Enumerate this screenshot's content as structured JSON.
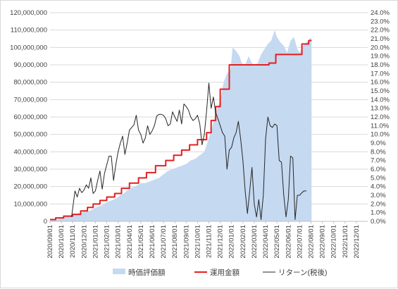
{
  "chart_data": {
    "type": "line",
    "title": "",
    "xlabel": "",
    "ylabel": "",
    "y_left_lim": [
      0,
      120000000
    ],
    "y_left_ticks": [
      "0",
      "10,000,000",
      "20,000,000",
      "30,000,000",
      "40,000,000",
      "50,000,000",
      "60,000,000",
      "70,000,000",
      "80,000,000",
      "90,000,000",
      "100,000,000",
      "110,000,000",
      "120,000,000"
    ],
    "y_right_lim": [
      0,
      24
    ],
    "y_right_ticks": [
      "0.0%",
      "1.0%",
      "2.0%",
      "3.0%",
      "4.0%",
      "5.0%",
      "6.0%",
      "7.0%",
      "8.0%",
      "9.0%",
      "10.0%",
      "11.0%",
      "12.0%",
      "13.0%",
      "14.0%",
      "15.0%",
      "16.0%",
      "17.0%",
      "18.0%",
      "19.0%",
      "20.0%",
      "21.0%",
      "22.0%",
      "23.0%",
      "24.0%"
    ],
    "x_ticks": [
      "2020/09/01",
      "2020/10/01",
      "2020/11/01",
      "2020/12/01",
      "2021/01/01",
      "2021/02/01",
      "2021/03/01",
      "2021/04/01",
      "2021/05/01",
      "2021/06/01",
      "2021/07/01",
      "2021/08/01",
      "2021/09/01",
      "2021/10/01",
      "2021/11/01",
      "2021/12/01",
      "2022/01/01",
      "2022/02/01",
      "2022/03/01",
      "2022/04/01",
      "2022/05/01",
      "2022/06/01",
      "2022/07/01",
      "2022/08/01",
      "2022/09/01",
      "2022/10/01",
      "2022/11/01",
      "2022/12/01"
    ],
    "x_range": [
      0,
      28
    ],
    "grid": true,
    "legend_position": "bottom",
    "series": [
      {
        "name": "時価評価額",
        "kind": "area",
        "axis": "left",
        "color": "#c5d9f1",
        "points": [
          [
            0.0,
            1000000
          ],
          [
            0.5,
            1000000
          ],
          [
            0.8,
            1500000
          ],
          [
            1.2,
            2500000
          ],
          [
            1.6,
            3000000
          ],
          [
            2.0,
            4000000
          ],
          [
            2.5,
            4500000
          ],
          [
            3.0,
            5500000
          ],
          [
            3.5,
            6000000
          ],
          [
            4.0,
            8000000
          ],
          [
            4.5,
            9000000
          ],
          [
            5.0,
            11000000
          ],
          [
            5.4,
            12000000
          ],
          [
            5.8,
            13000000
          ],
          [
            6.2,
            15000000
          ],
          [
            6.6,
            16500000
          ],
          [
            7.0,
            19000000
          ],
          [
            7.5,
            20000000
          ],
          [
            8.0,
            22000000
          ],
          [
            8.4,
            22000000
          ],
          [
            8.8,
            23000000
          ],
          [
            9.2,
            24000000
          ],
          [
            9.6,
            25000000
          ],
          [
            10.0,
            27000000
          ],
          [
            10.4,
            29000000
          ],
          [
            10.8,
            30000000
          ],
          [
            11.2,
            31000000
          ],
          [
            11.6,
            32000000
          ],
          [
            12.0,
            33000000
          ],
          [
            12.4,
            35000000
          ],
          [
            12.8,
            36000000
          ],
          [
            13.2,
            38000000
          ],
          [
            13.6,
            40000000
          ],
          [
            14.0,
            48000000
          ],
          [
            14.2,
            52000000
          ],
          [
            14.6,
            62000000
          ],
          [
            15.0,
            70000000
          ],
          [
            15.3,
            80000000
          ],
          [
            15.6,
            85000000
          ],
          [
            15.9,
            87000000
          ],
          [
            16.1,
            100000000
          ],
          [
            16.4,
            98000000
          ],
          [
            16.7,
            95000000
          ],
          [
            16.9,
            91000000
          ],
          [
            17.2,
            90000000
          ],
          [
            17.5,
            95000000
          ],
          [
            17.8,
            91000000
          ],
          [
            18.0,
            90000000
          ],
          [
            18.3,
            91000000
          ],
          [
            18.6,
            96000000
          ],
          [
            18.9,
            99000000
          ],
          [
            19.2,
            102000000
          ],
          [
            19.5,
            104000000
          ],
          [
            19.8,
            110000000
          ],
          [
            20.0,
            106000000
          ],
          [
            20.3,
            103000000
          ],
          [
            20.6,
            101000000
          ],
          [
            20.9,
            97000000
          ],
          [
            21.2,
            104000000
          ],
          [
            21.5,
            106000000
          ],
          [
            21.8,
            99000000
          ],
          [
            22.0,
            97000000
          ],
          [
            22.3,
            101000000
          ],
          [
            22.6,
            103000000
          ],
          [
            22.8,
            104000000
          ],
          [
            23.0,
            106000000
          ],
          [
            23.05,
            104000000
          ]
        ]
      },
      {
        "name": "運用金額",
        "kind": "step",
        "axis": "left",
        "color": "#e32020",
        "points": [
          [
            0.0,
            1000000
          ],
          [
            0.5,
            1000000
          ],
          [
            0.5,
            2000000
          ],
          [
            1.2,
            2000000
          ],
          [
            1.2,
            3000000
          ],
          [
            2.0,
            3000000
          ],
          [
            2.0,
            4000000
          ],
          [
            2.7,
            4000000
          ],
          [
            2.7,
            6000000
          ],
          [
            3.3,
            6000000
          ],
          [
            3.3,
            8000000
          ],
          [
            3.8,
            8000000
          ],
          [
            3.8,
            10000000
          ],
          [
            4.4,
            10000000
          ],
          [
            4.4,
            12000000
          ],
          [
            5.0,
            12000000
          ],
          [
            5.0,
            14000000
          ],
          [
            5.7,
            14000000
          ],
          [
            5.7,
            16000000
          ],
          [
            6.3,
            16000000
          ],
          [
            6.3,
            19000000
          ],
          [
            7.0,
            19000000
          ],
          [
            7.0,
            22000000
          ],
          [
            7.8,
            22000000
          ],
          [
            7.8,
            25000000
          ],
          [
            8.5,
            25000000
          ],
          [
            8.5,
            28000000
          ],
          [
            9.3,
            28000000
          ],
          [
            9.3,
            32000000
          ],
          [
            10.2,
            32000000
          ],
          [
            10.2,
            35000000
          ],
          [
            10.9,
            35000000
          ],
          [
            10.9,
            38000000
          ],
          [
            11.6,
            38000000
          ],
          [
            11.6,
            41000000
          ],
          [
            12.3,
            41000000
          ],
          [
            12.3,
            44000000
          ],
          [
            13.0,
            44000000
          ],
          [
            13.0,
            47000000
          ],
          [
            13.8,
            47000000
          ],
          [
            13.8,
            51000000
          ],
          [
            14.2,
            51000000
          ],
          [
            14.2,
            58000000
          ],
          [
            14.6,
            58000000
          ],
          [
            14.6,
            66000000
          ],
          [
            15.0,
            66000000
          ],
          [
            15.0,
            76000000
          ],
          [
            15.8,
            76000000
          ],
          [
            15.8,
            90000000
          ],
          [
            19.3,
            90000000
          ],
          [
            19.3,
            91000000
          ],
          [
            19.9,
            91000000
          ],
          [
            19.9,
            96000000
          ],
          [
            22.2,
            96000000
          ],
          [
            22.2,
            102000000
          ],
          [
            22.8,
            102000000
          ],
          [
            22.8,
            104000000
          ],
          [
            23.05,
            104000000
          ]
        ]
      },
      {
        "name": "リターン(税後)",
        "kind": "line",
        "axis": "right",
        "color": "#262626",
        "points": [
          [
            1.9,
            0.5
          ],
          [
            2.2,
            3.5
          ],
          [
            2.4,
            2.8
          ],
          [
            2.6,
            3.8
          ],
          [
            2.8,
            3.3
          ],
          [
            3.0,
            3.6
          ],
          [
            3.2,
            4.2
          ],
          [
            3.4,
            3.8
          ],
          [
            3.6,
            5.0
          ],
          [
            3.8,
            3.2
          ],
          [
            4.0,
            3.5
          ],
          [
            4.2,
            4.7
          ],
          [
            4.4,
            5.8
          ],
          [
            4.6,
            3.7
          ],
          [
            4.8,
            5.5
          ],
          [
            5.0,
            6.5
          ],
          [
            5.2,
            7.5
          ],
          [
            5.4,
            7.5
          ],
          [
            5.6,
            4.7
          ],
          [
            5.8,
            6.5
          ],
          [
            6.0,
            8.0
          ],
          [
            6.2,
            9.0
          ],
          [
            6.4,
            9.8
          ],
          [
            6.6,
            7.7
          ],
          [
            6.8,
            9.0
          ],
          [
            7.0,
            10.5
          ],
          [
            7.2,
            10.8
          ],
          [
            7.4,
            11.1
          ],
          [
            7.6,
            12.2
          ],
          [
            7.8,
            10.5
          ],
          [
            8.0,
            10.0
          ],
          [
            8.2,
            9.0
          ],
          [
            8.4,
            9.6
          ],
          [
            8.6,
            11.0
          ],
          [
            8.8,
            10.0
          ],
          [
            9.0,
            10.4
          ],
          [
            9.2,
            11.0
          ],
          [
            9.4,
            12.1
          ],
          [
            9.6,
            12.3
          ],
          [
            9.8,
            12.3
          ],
          [
            10.0,
            12.2
          ],
          [
            10.2,
            11.8
          ],
          [
            10.4,
            11.0
          ],
          [
            10.6,
            11.2
          ],
          [
            10.8,
            12.6
          ],
          [
            11.0,
            12.0
          ],
          [
            11.2,
            11.5
          ],
          [
            11.4,
            12.8
          ],
          [
            11.6,
            11.2
          ],
          [
            11.8,
            13.5
          ],
          [
            12.0,
            13.2
          ],
          [
            12.2,
            12.8
          ],
          [
            12.4,
            12.0
          ],
          [
            12.6,
            11.6
          ],
          [
            12.8,
            11.8
          ],
          [
            13.0,
            12.2
          ],
          [
            13.2,
            11.2
          ],
          [
            13.4,
            8.8
          ],
          [
            13.6,
            10.0
          ],
          [
            13.8,
            12.7
          ],
          [
            14.0,
            15.9
          ],
          [
            14.2,
            13.0
          ],
          [
            14.4,
            14.3
          ],
          [
            14.6,
            12.5
          ],
          [
            14.8,
            11.8
          ],
          [
            15.0,
            11.0
          ],
          [
            15.2,
            10.2
          ],
          [
            15.4,
            9.8
          ],
          [
            15.6,
            6.0
          ],
          [
            15.8,
            8.2
          ],
          [
            16.0,
            8.5
          ],
          [
            16.2,
            9.6
          ],
          [
            16.4,
            10.2
          ],
          [
            16.6,
            11.5
          ],
          [
            16.8,
            9.5
          ],
          [
            17.0,
            7.0
          ],
          [
            17.2,
            3.5
          ],
          [
            17.4,
            0.9
          ],
          [
            17.6,
            3.5
          ],
          [
            17.8,
            6.2
          ],
          [
            18.0,
            2.0
          ],
          [
            18.2,
            0.5
          ],
          [
            18.4,
            2.5
          ],
          [
            18.6,
            0.2
          ],
          [
            18.8,
            3.0
          ],
          [
            19.0,
            9.5
          ],
          [
            19.2,
            12.0
          ],
          [
            19.4,
            11.0
          ],
          [
            19.6,
            10.8
          ],
          [
            19.8,
            11.2
          ],
          [
            20.0,
            11.0
          ],
          [
            20.2,
            7.0
          ],
          [
            20.4,
            6.8
          ],
          [
            20.6,
            3.0
          ],
          [
            20.8,
            0.5
          ],
          [
            21.0,
            2.5
          ],
          [
            21.2,
            7.5
          ],
          [
            21.4,
            7.3
          ],
          [
            21.6,
            0.2
          ],
          [
            21.8,
            3.0
          ],
          [
            22.0,
            3.0
          ],
          [
            22.2,
            3.3
          ],
          [
            22.4,
            3.5
          ],
          [
            22.6,
            3.5
          ]
        ]
      }
    ]
  }
}
